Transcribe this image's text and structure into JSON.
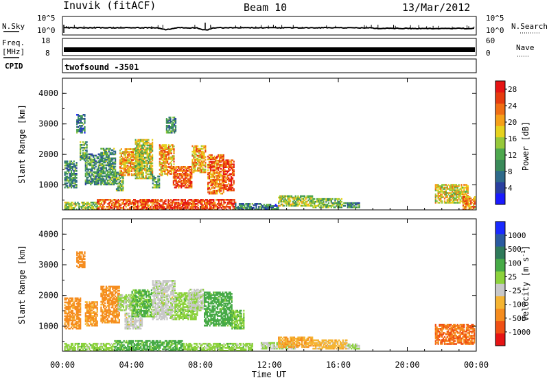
{
  "header": {
    "station": "Inuvik (fitACF)",
    "beam": "Beam 10",
    "date": "13/Mar/2012"
  },
  "top_panels": {
    "nsky_label": "N.Sky",
    "nsky_ticks": [
      "10^5",
      "10^0"
    ],
    "nsearch_label": "N.Search",
    "nsearch_ticks": [
      "10^5",
      "10^0"
    ],
    "freq_label": "Freq.",
    "freq_unit": "[MHz]",
    "freq_ticks": [
      "18",
      "8"
    ],
    "nave_label": "Nave",
    "nave_ticks": [
      "60",
      "0"
    ],
    "cpid_label": "CPID",
    "cpid_value": "twofsound -3501"
  },
  "colors": {
    "power_scale": [
      "#1a1aff",
      "#2a3fa0",
      "#2e6a8a",
      "#3a8a5a",
      "#4ea84e",
      "#96c83a",
      "#e6d21e",
      "#f5a019",
      "#f06e14",
      "#e63c0f",
      "#e61414"
    ],
    "velocity_scale": [
      "#e61414",
      "#f05014",
      "#f58c1e",
      "#f5b432",
      "#c8c8c8",
      "#8cd23c",
      "#46aa46",
      "#2e7a5a",
      "#2a5aa0",
      "#1a2aff"
    ]
  },
  "chart_data": [
    {
      "type": "heatmap",
      "title": "",
      "xlabel": "Time UT",
      "ylabel": "Slant Range [km]",
      "x_ticks": [
        "00:00",
        "04:00",
        "08:00",
        "12:00",
        "16:00",
        "20:00",
        "00:00"
      ],
      "y_ticks": [
        "1000",
        "2000",
        "3000",
        "4000"
      ],
      "xlim_hours": [
        0,
        24
      ],
      "ylim_km": [
        180,
        4500
      ],
      "colorbar": {
        "label": "Power [dB]",
        "ticks": [
          "4",
          "8",
          "12",
          "16",
          "20",
          "24",
          "28"
        ],
        "range": [
          0,
          30
        ]
      },
      "echo_regions": [
        {
          "t": [
            0.1,
            0.8
          ],
          "r": [
            900,
            1800
          ],
          "value": 10
        },
        {
          "t": [
            0.8,
            1.3
          ],
          "r": [
            2700,
            3300
          ],
          "value": 8
        },
        {
          "t": [
            1.0,
            1.4
          ],
          "r": [
            1800,
            2400
          ],
          "value": 12
        },
        {
          "t": [
            1.3,
            2.3
          ],
          "r": [
            1000,
            2000
          ],
          "value": 10
        },
        {
          "t": [
            2.2,
            3.1
          ],
          "r": [
            1000,
            2200
          ],
          "value": 11
        },
        {
          "t": [
            3.1,
            3.5
          ],
          "r": [
            800,
            1400
          ],
          "value": 13
        },
        {
          "t": [
            3.3,
            4.6
          ],
          "r": [
            1300,
            2200
          ],
          "value": 20
        },
        {
          "t": [
            4.2,
            5.2
          ],
          "r": [
            1200,
            2500
          ],
          "value": 16
        },
        {
          "t": [
            5.2,
            5.6
          ],
          "r": [
            900,
            1300
          ],
          "value": 11
        },
        {
          "t": [
            5.6,
            6.5
          ],
          "r": [
            1300,
            2300
          ],
          "value": 21
        },
        {
          "t": [
            6.0,
            6.6
          ],
          "r": [
            2700,
            3200
          ],
          "value": 9
        },
        {
          "t": [
            6.4,
            7.5
          ],
          "r": [
            900,
            1600
          ],
          "value": 25
        },
        {
          "t": [
            7.5,
            8.3
          ],
          "r": [
            1400,
            2300
          ],
          "value": 20
        },
        {
          "t": [
            8.4,
            9.3
          ],
          "r": [
            700,
            2000
          ],
          "value": 23
        },
        {
          "t": [
            9.3,
            9.9
          ],
          "r": [
            800,
            1800
          ],
          "value": 26
        },
        {
          "t": [
            0.1,
            2.0
          ],
          "r": [
            180,
            450
          ],
          "value": 14
        },
        {
          "t": [
            2.0,
            5.5
          ],
          "r": [
            180,
            500
          ],
          "value": 24
        },
        {
          "t": [
            5.5,
            10.0
          ],
          "r": [
            180,
            520
          ],
          "value": 26
        },
        {
          "t": [
            10.0,
            11.5
          ],
          "r": [
            180,
            400
          ],
          "value": 9
        },
        {
          "t": [
            11.5,
            12.5
          ],
          "r": [
            200,
            350
          ],
          "value": 8
        },
        {
          "t": [
            12.5,
            14.5
          ],
          "r": [
            300,
            650
          ],
          "value": 15
        },
        {
          "t": [
            14.5,
            16.2
          ],
          "r": [
            250,
            550
          ],
          "value": 13
        },
        {
          "t": [
            16.2,
            17.2
          ],
          "r": [
            250,
            400
          ],
          "value": 10
        },
        {
          "t": [
            21.6,
            23.5
          ],
          "r": [
            400,
            1000
          ],
          "value": 18
        },
        {
          "t": [
            23.2,
            23.9
          ],
          "r": [
            180,
            600
          ],
          "value": 22
        }
      ]
    },
    {
      "type": "heatmap",
      "title": "",
      "xlabel": "Time UT",
      "ylabel": "Slant Range [km]",
      "x_ticks": [
        "00:00",
        "04:00",
        "08:00",
        "12:00",
        "16:00",
        "20:00",
        "00:00"
      ],
      "y_ticks": [
        "1000",
        "2000",
        "3000",
        "4000"
      ],
      "xlim_hours": [
        0,
        24
      ],
      "ylim_km": [
        180,
        4500
      ],
      "colorbar": {
        "label": "Velocity [m s^-1]",
        "ticks": [
          "1000",
          "500",
          "100",
          "25",
          "-25",
          "-100",
          "-500",
          "-1000"
        ],
        "range": [
          -1200,
          1200
        ]
      },
      "echo_regions": [
        {
          "t": [
            0.1,
            1.0
          ],
          "r": [
            900,
            1900
          ],
          "value": -150
        },
        {
          "t": [
            0.8,
            1.3
          ],
          "r": [
            2900,
            3400
          ],
          "value": -200
        },
        {
          "t": [
            1.3,
            2.0
          ],
          "r": [
            1000,
            1800
          ],
          "value": -120
        },
        {
          "t": [
            2.2,
            3.3
          ],
          "r": [
            1100,
            2300
          ],
          "value": -150
        },
        {
          "t": [
            3.2,
            4.2
          ],
          "r": [
            1500,
            2000
          ],
          "value": 30
        },
        {
          "t": [
            3.6,
            4.6
          ],
          "r": [
            900,
            1400
          ],
          "value": 0
        },
        {
          "t": [
            4.0,
            5.2
          ],
          "r": [
            1300,
            2200
          ],
          "value": 110
        },
        {
          "t": [
            5.2,
            6.5
          ],
          "r": [
            1200,
            2500
          ],
          "value": 5
        },
        {
          "t": [
            6.5,
            7.8
          ],
          "r": [
            1200,
            2100
          ],
          "value": 60
        },
        {
          "t": [
            7.3,
            8.2
          ],
          "r": [
            1500,
            2200
          ],
          "value": 10
        },
        {
          "t": [
            8.2,
            9.8
          ],
          "r": [
            1000,
            2100
          ],
          "value": 180
        },
        {
          "t": [
            9.8,
            10.5
          ],
          "r": [
            900,
            1500
          ],
          "value": 90
        },
        {
          "t": [
            0.1,
            3.0
          ],
          "r": [
            180,
            450
          ],
          "value": 60
        },
        {
          "t": [
            3.0,
            7.0
          ],
          "r": [
            180,
            500
          ],
          "value": 150
        },
        {
          "t": [
            7.0,
            11.0
          ],
          "r": [
            180,
            450
          ],
          "value": 60
        },
        {
          "t": [
            11.5,
            13.5
          ],
          "r": [
            250,
            450
          ],
          "value": 20
        },
        {
          "t": [
            12.5,
            14.5
          ],
          "r": [
            300,
            650
          ],
          "value": -90
        },
        {
          "t": [
            14.5,
            16.5
          ],
          "r": [
            250,
            550
          ],
          "value": -60
        },
        {
          "t": [
            16.5,
            17.2
          ],
          "r": [
            250,
            400
          ],
          "value": 40
        },
        {
          "t": [
            21.6,
            23.9
          ],
          "r": [
            400,
            1050
          ],
          "value": -500
        }
      ]
    }
  ]
}
